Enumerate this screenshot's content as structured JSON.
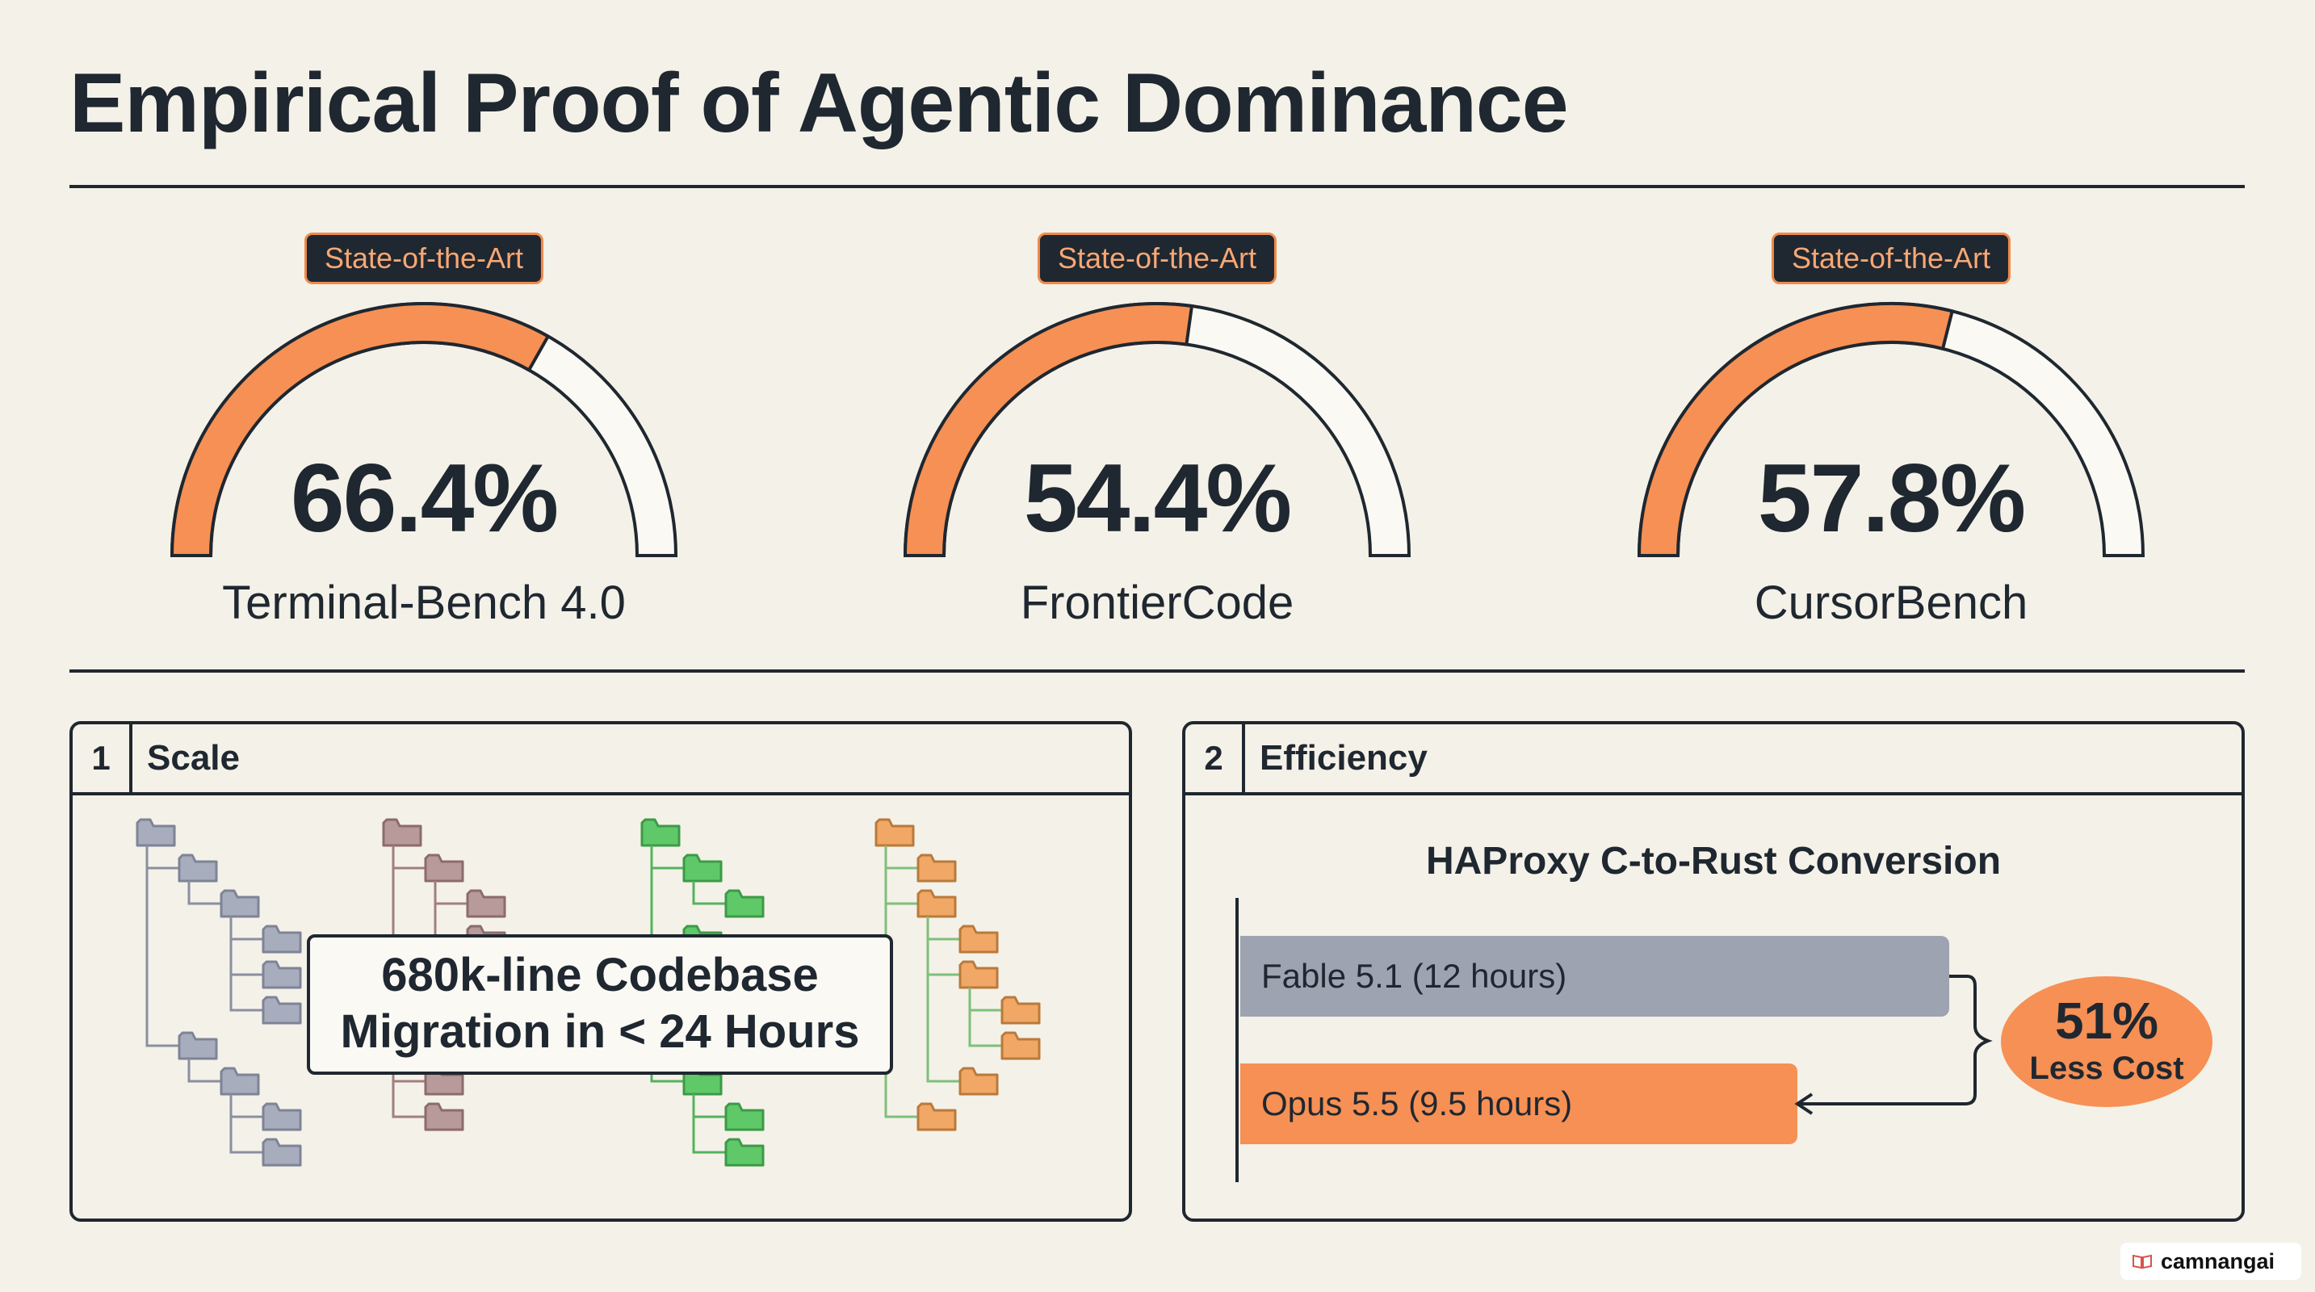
{
  "title": "Empirical Proof of Agentic Dominance",
  "colors": {
    "accent": "#f69054",
    "ink": "#1f2730",
    "secondary": "#9ea3b2",
    "background": "#f4f1e8"
  },
  "gauges": [
    {
      "badge": "State-of-the-Art",
      "value": "66.4%",
      "fraction": 0.664,
      "label": "Terminal-Bench 4.0"
    },
    {
      "badge": "State-of-the-Art",
      "value": "54.4%",
      "fraction": 0.544,
      "label": "FrontierCode"
    },
    {
      "badge": "State-of-the-Art",
      "value": "57.8%",
      "fraction": 0.578,
      "label": "CursorBench"
    }
  ],
  "panels": {
    "scale": {
      "number": "1",
      "title": "Scale",
      "headline_line1": "680k-line Codebase",
      "headline_line2": "Migration in < 24 Hours",
      "icon": "folder-tree-icon"
    },
    "efficiency": {
      "number": "2",
      "title": "Efficiency",
      "chart_title": "HAProxy C-to-Rust Conversion",
      "bars": [
        {
          "label": "Fable 5.1 (12 hours)",
          "hours": 12
        },
        {
          "label": "Opus 5.5 (9.5 hours)",
          "hours": 9.5
        }
      ],
      "savings_pct": "51%",
      "savings_label": "Less Cost"
    }
  },
  "watermark": {
    "text": "camnangai",
    "icon": "book-icon"
  }
}
